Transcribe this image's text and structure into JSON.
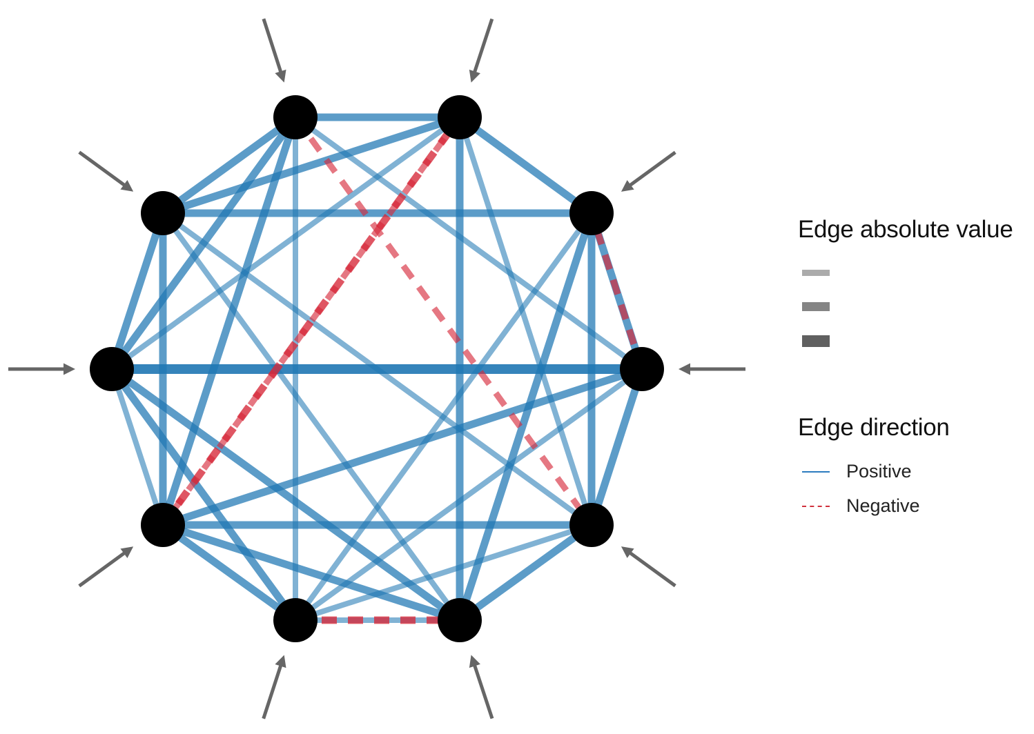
{
  "colors": {
    "positive": "#1f77b4",
    "negative": "#d62839",
    "node": "#000000",
    "arrow": "#666666",
    "legend_swatch": "#444444"
  },
  "nodes": [
    "n1",
    "n2",
    "n3",
    "n4",
    "n5",
    "n6",
    "n7",
    "n8",
    "n9",
    "n10"
  ],
  "edges": [
    {
      "from": "n10",
      "to": "n5",
      "sign": "positive",
      "strength": 1.0
    },
    {
      "from": "n1",
      "to": "n10",
      "sign": "positive",
      "strength": 0.7
    },
    {
      "from": "n1",
      "to": "n2",
      "sign": "positive",
      "strength": 0.7
    },
    {
      "from": "n1",
      "to": "n3",
      "sign": "positive",
      "strength": 0.7
    },
    {
      "from": "n1",
      "to": "n4",
      "sign": "positive",
      "strength": 0.7
    },
    {
      "from": "n1",
      "to": "n6",
      "sign": "positive",
      "strength": 0.4
    },
    {
      "from": "n1",
      "to": "n7",
      "sign": "positive",
      "strength": 0.4
    },
    {
      "from": "n2",
      "to": "n3",
      "sign": "positive",
      "strength": 0.7
    },
    {
      "from": "n2",
      "to": "n9",
      "sign": "positive",
      "strength": 0.7
    },
    {
      "from": "n2",
      "to": "n8",
      "sign": "positive",
      "strength": 0.4
    },
    {
      "from": "n2",
      "to": "n5",
      "sign": "positive",
      "strength": 0.4
    },
    {
      "from": "n3",
      "to": "n4",
      "sign": "positive",
      "strength": 0.7
    },
    {
      "from": "n3",
      "to": "n7",
      "sign": "positive",
      "strength": 0.7
    },
    {
      "from": "n3",
      "to": "n6",
      "sign": "positive",
      "strength": 0.4
    },
    {
      "from": "n4",
      "to": "n5",
      "sign": "positive",
      "strength": 0.7
    },
    {
      "from": "n4",
      "to": "n6",
      "sign": "positive",
      "strength": 0.7
    },
    {
      "from": "n4",
      "to": "n7",
      "sign": "positive",
      "strength": 0.7
    },
    {
      "from": "n4",
      "to": "n8",
      "sign": "positive",
      "strength": 0.4
    },
    {
      "from": "n5",
      "to": "n6",
      "sign": "positive",
      "strength": 0.7
    },
    {
      "from": "n5",
      "to": "n8",
      "sign": "positive",
      "strength": 0.4
    },
    {
      "from": "n6",
      "to": "n7",
      "sign": "positive",
      "strength": 0.7
    },
    {
      "from": "n6",
      "to": "n9",
      "sign": "positive",
      "strength": 0.7
    },
    {
      "from": "n6",
      "to": "n8",
      "sign": "positive",
      "strength": 0.4
    },
    {
      "from": "n7",
      "to": "n10",
      "sign": "positive",
      "strength": 0.7
    },
    {
      "from": "n7",
      "to": "n9",
      "sign": "positive",
      "strength": 0.7
    },
    {
      "from": "n7",
      "to": "n8",
      "sign": "positive",
      "strength": 0.4
    },
    {
      "from": "n8",
      "to": "n9",
      "sign": "positive",
      "strength": 0.7
    },
    {
      "from": "n8",
      "to": "n10",
      "sign": "positive",
      "strength": 0.7
    },
    {
      "from": "n9",
      "to": "n10",
      "sign": "positive",
      "strength": 0.4
    },
    {
      "from": "n10",
      "to": "n3",
      "sign": "positive",
      "strength": 0.4
    },
    {
      "from": "n9",
      "to": "n5",
      "sign": "positive",
      "strength": 0.7
    },
    {
      "from": "n1",
      "to": "n9",
      "sign": "positive",
      "strength": 0.7
    },
    {
      "from": "n10",
      "to": "n2",
      "sign": "positive",
      "strength": 0.7
    },
    {
      "from": "n9",
      "to": "n3",
      "sign": "negative",
      "strength": 0.8
    },
    {
      "from": "n8",
      "to": "n7",
      "sign": "negative",
      "strength": 0.8
    },
    {
      "from": "n5",
      "to": "n4",
      "sign": "negative",
      "strength": 0.6
    },
    {
      "from": "n2",
      "to": "n6",
      "sign": "negative",
      "strength": 0.5
    },
    {
      "from": "n3",
      "to": "n9",
      "sign": "negative",
      "strength": 0.5
    }
  ],
  "legend": {
    "absolute_title": "Edge absolute value",
    "absolute_levels": [
      0.33,
      0.66,
      1.0
    ],
    "direction_title": "Edge direction",
    "positive_label": "Positive",
    "negative_label": "Negative"
  }
}
